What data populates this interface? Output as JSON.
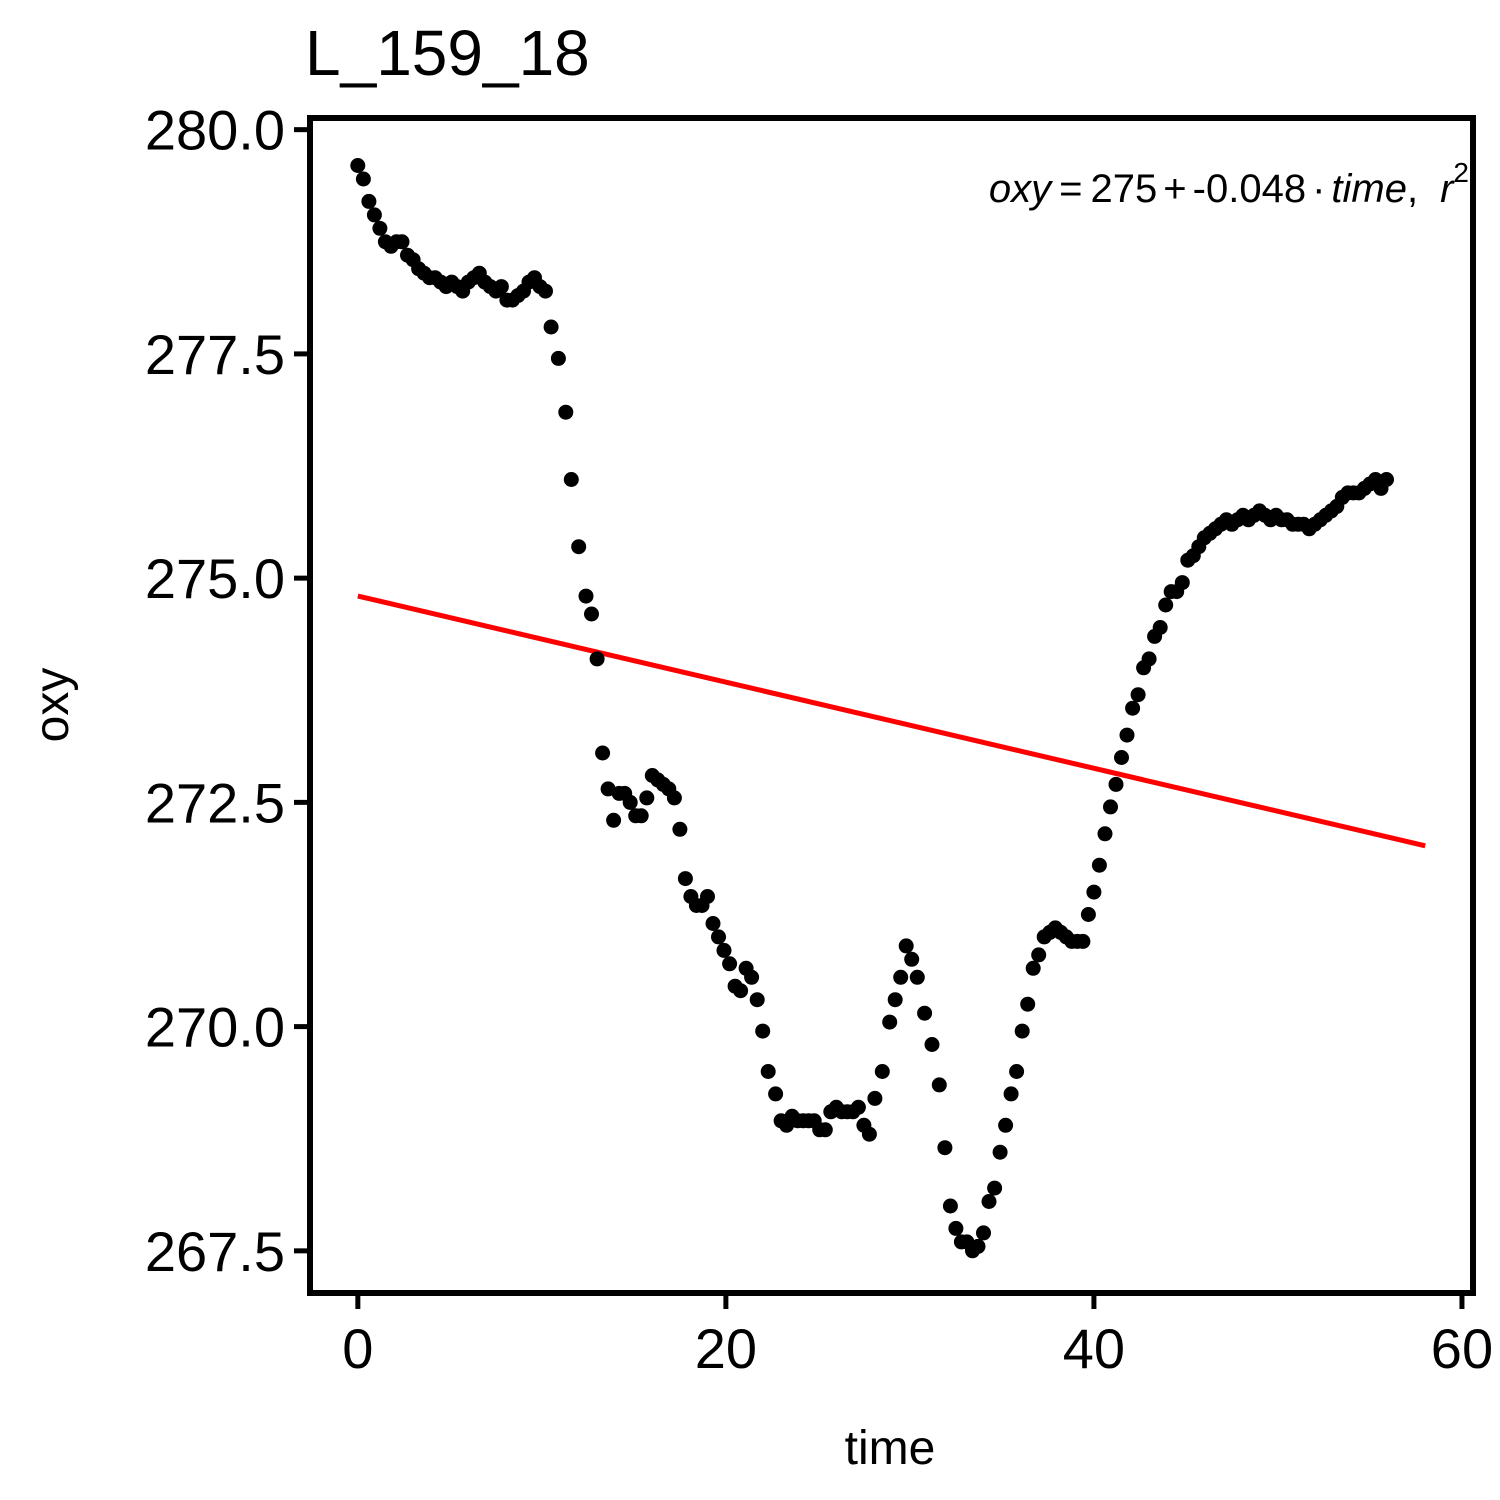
{
  "chart_data": {
    "type": "scatter",
    "title": "L_159_18",
    "xlabel": "time",
    "ylabel": "oxy",
    "xlim": [
      -2.6,
      60.6
    ],
    "ylim": [
      267.03,
      280.13
    ],
    "x_ticks": [
      0,
      20,
      40,
      60
    ],
    "x_tick_labels": [
      "0",
      "20",
      "40",
      "60"
    ],
    "y_ticks": [
      267.5,
      270.0,
      272.5,
      275.0,
      277.5,
      280.0
    ],
    "y_tick_labels": [
      "267.5",
      "270.0",
      "272.5",
      "275.0",
      "277.5",
      "280.0"
    ],
    "grid": false,
    "legend": "none",
    "colors": {
      "points": "#000000",
      "fit_line": "#ff0000",
      "axes": "#000000"
    },
    "annotation": {
      "var1": "oxy",
      "eq_sign": "=",
      "intercept": "275",
      "plus": "+",
      "slope": "-0.048",
      "dot": "·",
      "var2": "time",
      "comma": ",",
      "r": "r",
      "sup": "2"
    },
    "fit": {
      "intercept": 274.8,
      "slope": -0.048,
      "x_range": [
        0,
        58
      ]
    },
    "points": [
      [
        0.0,
        279.6
      ],
      [
        0.3,
        279.45
      ],
      [
        0.6,
        279.2
      ],
      [
        0.9,
        279.05
      ],
      [
        1.2,
        278.9
      ],
      [
        1.5,
        278.75
      ],
      [
        1.8,
        278.7
      ],
      [
        2.1,
        278.75
      ],
      [
        2.4,
        278.75
      ],
      [
        2.7,
        278.6
      ],
      [
        3.0,
        278.55
      ],
      [
        3.3,
        278.45
      ],
      [
        3.6,
        278.4
      ],
      [
        3.9,
        278.35
      ],
      [
        4.2,
        278.35
      ],
      [
        4.5,
        278.3
      ],
      [
        4.8,
        278.25
      ],
      [
        5.1,
        278.3
      ],
      [
        5.4,
        278.25
      ],
      [
        5.7,
        278.2
      ],
      [
        6.0,
        278.3
      ],
      [
        6.3,
        278.35
      ],
      [
        6.6,
        278.4
      ],
      [
        6.9,
        278.3
      ],
      [
        7.2,
        278.25
      ],
      [
        7.5,
        278.2
      ],
      [
        7.8,
        278.25
      ],
      [
        8.1,
        278.1
      ],
      [
        8.4,
        278.1
      ],
      [
        8.7,
        278.15
      ],
      [
        9.0,
        278.2
      ],
      [
        9.3,
        278.3
      ],
      [
        9.6,
        278.35
      ],
      [
        9.9,
        278.25
      ],
      [
        10.2,
        278.2
      ],
      [
        10.5,
        277.8
      ],
      [
        10.9,
        277.45
      ],
      [
        11.3,
        276.85
      ],
      [
        11.6,
        276.1
      ],
      [
        12.0,
        275.35
      ],
      [
        12.4,
        274.8
      ],
      [
        12.7,
        274.6
      ],
      [
        13.0,
        274.1
      ],
      [
        13.3,
        273.05
      ],
      [
        13.6,
        272.65
      ],
      [
        13.9,
        272.3
      ],
      [
        14.2,
        272.6
      ],
      [
        14.5,
        272.6
      ],
      [
        14.8,
        272.5
      ],
      [
        15.1,
        272.35
      ],
      [
        15.4,
        272.35
      ],
      [
        15.7,
        272.55
      ],
      [
        16.0,
        272.8
      ],
      [
        16.3,
        272.75
      ],
      [
        16.6,
        272.7
      ],
      [
        16.9,
        272.65
      ],
      [
        17.2,
        272.55
      ],
      [
        17.5,
        272.2
      ],
      [
        17.8,
        271.65
      ],
      [
        18.1,
        271.45
      ],
      [
        18.4,
        271.35
      ],
      [
        18.7,
        271.35
      ],
      [
        19.0,
        271.45
      ],
      [
        19.3,
        271.15
      ],
      [
        19.6,
        271.0
      ],
      [
        19.9,
        270.85
      ],
      [
        20.2,
        270.7
      ],
      [
        20.5,
        270.45
      ],
      [
        20.8,
        270.4
      ],
      [
        21.1,
        270.65
      ],
      [
        21.4,
        270.55
      ],
      [
        21.7,
        270.3
      ],
      [
        22.0,
        269.95
      ],
      [
        22.3,
        269.5
      ],
      [
        22.7,
        269.25
      ],
      [
        23.0,
        268.95
      ],
      [
        23.3,
        268.9
      ],
      [
        23.6,
        269.0
      ],
      [
        23.9,
        268.95
      ],
      [
        24.2,
        268.95
      ],
      [
        24.5,
        268.95
      ],
      [
        24.8,
        268.95
      ],
      [
        25.1,
        268.85
      ],
      [
        25.4,
        268.85
      ],
      [
        25.7,
        269.05
      ],
      [
        26.0,
        269.1
      ],
      [
        26.3,
        269.05
      ],
      [
        26.6,
        269.05
      ],
      [
        26.9,
        269.05
      ],
      [
        27.2,
        269.1
      ],
      [
        27.5,
        268.9
      ],
      [
        27.8,
        268.8
      ],
      [
        28.1,
        269.2
      ],
      [
        28.5,
        269.5
      ],
      [
        28.9,
        270.05
      ],
      [
        29.2,
        270.3
      ],
      [
        29.5,
        270.55
      ],
      [
        29.8,
        270.9
      ],
      [
        30.1,
        270.75
      ],
      [
        30.4,
        270.55
      ],
      [
        30.8,
        270.15
      ],
      [
        31.2,
        269.8
      ],
      [
        31.6,
        269.35
      ],
      [
        31.9,
        268.65
      ],
      [
        32.2,
        268.0
      ],
      [
        32.5,
        267.75
      ],
      [
        32.8,
        267.6
      ],
      [
        33.1,
        267.6
      ],
      [
        33.4,
        267.5
      ],
      [
        33.7,
        267.55
      ],
      [
        34.0,
        267.7
      ],
      [
        34.3,
        268.05
      ],
      [
        34.6,
        268.2
      ],
      [
        34.9,
        268.6
      ],
      [
        35.2,
        268.9
      ],
      [
        35.5,
        269.25
      ],
      [
        35.8,
        269.5
      ],
      [
        36.1,
        269.95
      ],
      [
        36.4,
        270.25
      ],
      [
        36.7,
        270.65
      ],
      [
        37.0,
        270.8
      ],
      [
        37.3,
        271.0
      ],
      [
        37.6,
        271.05
      ],
      [
        37.9,
        271.1
      ],
      [
        38.2,
        271.05
      ],
      [
        38.5,
        271.0
      ],
      [
        38.8,
        270.95
      ],
      [
        39.1,
        270.95
      ],
      [
        39.4,
        270.95
      ],
      [
        39.7,
        271.25
      ],
      [
        40.0,
        271.5
      ],
      [
        40.3,
        271.8
      ],
      [
        40.6,
        272.15
      ],
      [
        40.9,
        272.45
      ],
      [
        41.2,
        272.7
      ],
      [
        41.5,
        273.0
      ],
      [
        41.8,
        273.25
      ],
      [
        42.1,
        273.55
      ],
      [
        42.4,
        273.7
      ],
      [
        42.7,
        274.0
      ],
      [
        43.0,
        274.1
      ],
      [
        43.3,
        274.35
      ],
      [
        43.6,
        274.45
      ],
      [
        43.9,
        274.7
      ],
      [
        44.2,
        274.85
      ],
      [
        44.5,
        274.85
      ],
      [
        44.8,
        274.95
      ],
      [
        45.1,
        275.2
      ],
      [
        45.4,
        275.25
      ],
      [
        45.7,
        275.35
      ],
      [
        46.0,
        275.45
      ],
      [
        46.3,
        275.5
      ],
      [
        46.6,
        275.55
      ],
      [
        46.9,
        275.6
      ],
      [
        47.2,
        275.65
      ],
      [
        47.5,
        275.6
      ],
      [
        47.8,
        275.65
      ],
      [
        48.1,
        275.7
      ],
      [
        48.4,
        275.65
      ],
      [
        48.7,
        275.7
      ],
      [
        49.0,
        275.75
      ],
      [
        49.3,
        275.7
      ],
      [
        49.6,
        275.65
      ],
      [
        49.9,
        275.7
      ],
      [
        50.2,
        275.65
      ],
      [
        50.5,
        275.65
      ],
      [
        50.8,
        275.6
      ],
      [
        51.1,
        275.6
      ],
      [
        51.4,
        275.6
      ],
      [
        51.7,
        275.55
      ],
      [
        52.0,
        275.6
      ],
      [
        52.3,
        275.65
      ],
      [
        52.6,
        275.7
      ],
      [
        52.9,
        275.75
      ],
      [
        53.2,
        275.8
      ],
      [
        53.5,
        275.9
      ],
      [
        53.8,
        275.95
      ],
      [
        54.1,
        275.95
      ],
      [
        54.4,
        275.95
      ],
      [
        54.7,
        276.0
      ],
      [
        55.0,
        276.05
      ],
      [
        55.3,
        276.1
      ],
      [
        55.6,
        276.0
      ],
      [
        55.9,
        276.1
      ]
    ]
  }
}
